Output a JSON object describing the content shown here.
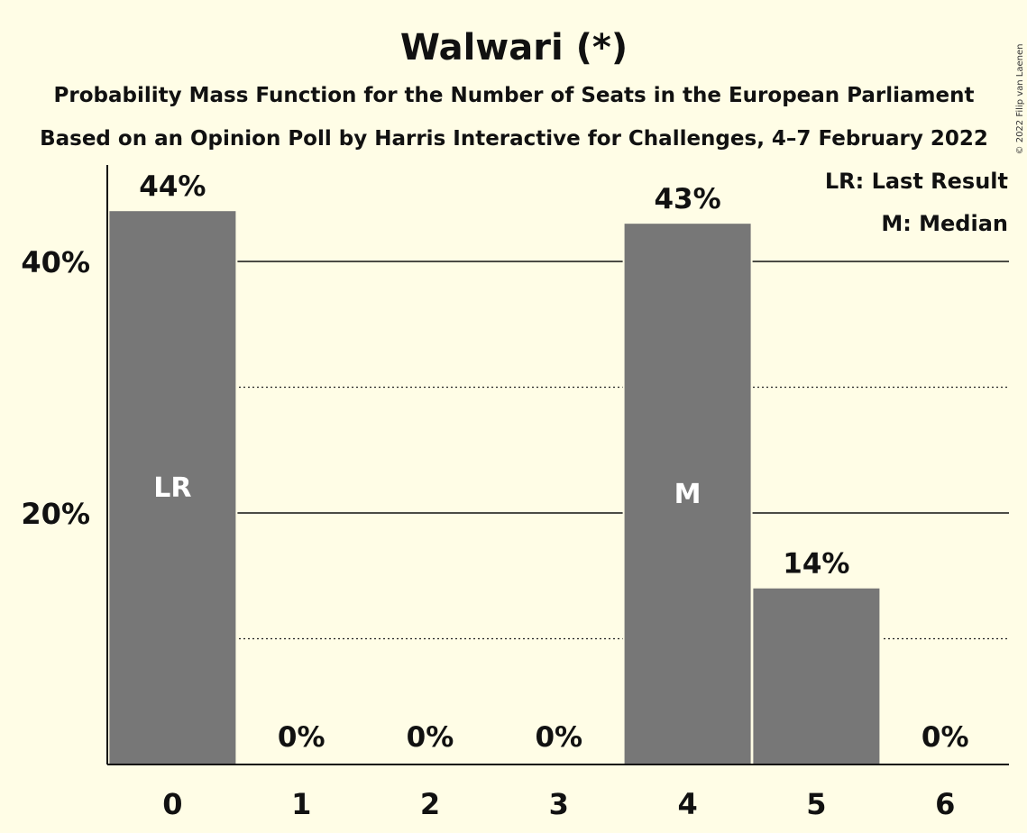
{
  "chart_data": {
    "type": "bar",
    "title": "Walwari (*)",
    "subtitle_lines": [
      "Probability Mass Function for the Number of Seats in the European Parliament",
      "Based on an Opinion Poll by Harris Interactive for Challenges, 4–7 February 2022"
    ],
    "categories": [
      "0",
      "1",
      "2",
      "3",
      "4",
      "5",
      "6"
    ],
    "values": [
      44,
      0,
      0,
      0,
      43,
      14,
      0
    ],
    "value_labels": [
      "44%",
      "0%",
      "0%",
      "0%",
      "43%",
      "14%",
      "0%"
    ],
    "bar_annotations": [
      {
        "category": "0",
        "text": "LR"
      },
      {
        "category": "4",
        "text": "M"
      }
    ],
    "y_ticks": [
      {
        "value": 20,
        "label": "20%"
      },
      {
        "value": 40,
        "label": "40%"
      }
    ],
    "minor_gridlines": [
      10,
      30
    ],
    "ylim": [
      0,
      48
    ],
    "legend": {
      "placement": "top-right",
      "items": [
        "LR: Last Result",
        "M: Median"
      ]
    },
    "copyright": "© 2022 Filip van Laenen",
    "colors": {
      "background": "#fffde6",
      "bar": "#777777",
      "text": "#111111",
      "in_bar_text": "#ffffff"
    }
  }
}
